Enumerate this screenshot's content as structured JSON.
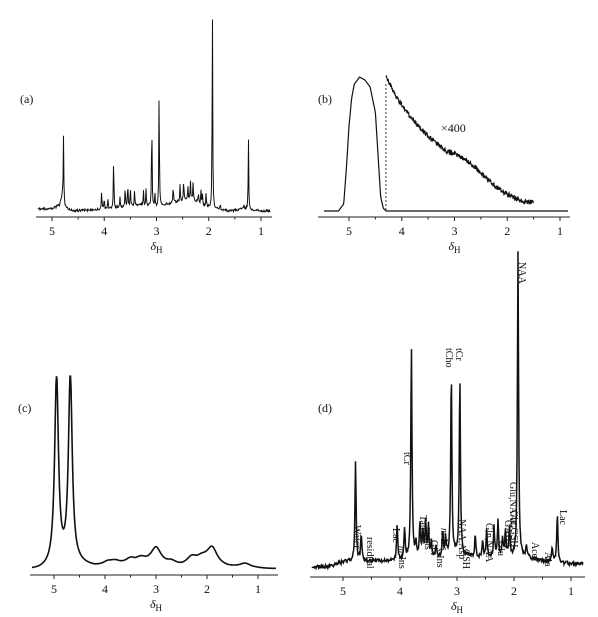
{
  "chart_data": [
    {
      "panel_label": "(a)",
      "type": "line",
      "xlabel": "δH",
      "xticks": [
        "5",
        "4",
        "3",
        "2",
        "1"
      ],
      "xlim": [
        5.4,
        0.6
      ],
      "grid": false,
      "baseline_points": [
        [
          5.0,
          0.02
        ],
        [
          4.85,
          0.04
        ],
        [
          4.8,
          0.09
        ],
        [
          4.75,
          0.03
        ],
        [
          4.6,
          0.01
        ],
        [
          4.3,
          0.015
        ],
        [
          3.9,
          0.02
        ],
        [
          3.6,
          0.03
        ],
        [
          3.3,
          0.04
        ],
        [
          3.0,
          0.03
        ],
        [
          2.7,
          0.05
        ],
        [
          2.5,
          0.06
        ],
        [
          2.35,
          0.07
        ],
        [
          2.2,
          0.05
        ],
        [
          2.05,
          0.03
        ],
        [
          1.9,
          0.02
        ],
        [
          1.6,
          0.01
        ],
        [
          1.3,
          0.02
        ],
        [
          1.0,
          0.01
        ],
        [
          0.7,
          0.01
        ]
      ],
      "peaks": [
        {
          "x": 4.78,
          "y": 0.31
        },
        {
          "x": 4.05,
          "y": 0.09
        },
        {
          "x": 4.0,
          "y": 0.05
        },
        {
          "x": 3.93,
          "y": 0.05
        },
        {
          "x": 3.82,
          "y": 0.26
        },
        {
          "x": 3.7,
          "y": 0.05
        },
        {
          "x": 3.6,
          "y": 0.1
        },
        {
          "x": 3.55,
          "y": 0.12
        },
        {
          "x": 3.5,
          "y": 0.09
        },
        {
          "x": 3.42,
          "y": 0.07
        },
        {
          "x": 3.25,
          "y": 0.07
        },
        {
          "x": 3.2,
          "y": 0.08
        },
        {
          "x": 3.09,
          "y": 0.46
        },
        {
          "x": 3.03,
          "y": 0.06
        },
        {
          "x": 2.95,
          "y": 0.58
        },
        {
          "x": 2.68,
          "y": 0.09
        },
        {
          "x": 2.55,
          "y": 0.08
        },
        {
          "x": 2.48,
          "y": 0.1
        },
        {
          "x": 2.4,
          "y": 0.07
        },
        {
          "x": 2.35,
          "y": 0.08
        },
        {
          "x": 2.3,
          "y": 0.09
        },
        {
          "x": 2.2,
          "y": 0.05
        },
        {
          "x": 2.15,
          "y": 0.07
        },
        {
          "x": 2.12,
          "y": 0.05
        },
        {
          "x": 2.05,
          "y": 0.07
        },
        {
          "x": 1.93,
          "y": 1.0
        },
        {
          "x": 1.78,
          "y": 0.03
        },
        {
          "x": 1.33,
          "y": 0.03
        },
        {
          "x": 1.24,
          "y": 0.34
        }
      ]
    },
    {
      "panel_label": "(b)",
      "type": "line",
      "xlabel": "δH",
      "xticks": [
        "5",
        "4",
        "3",
        "2",
        "1"
      ],
      "xlim": [
        5.4,
        0.6
      ],
      "grid": false,
      "annotation": "×400",
      "marker_line_x": 4.3,
      "series": [
        {
          "points": [
            [
              5.4,
              0.0
            ],
            [
              5.2,
              0.0
            ],
            [
              5.1,
              0.05
            ],
            [
              5.05,
              0.3
            ],
            [
              5.0,
              0.6
            ],
            [
              4.95,
              0.8
            ],
            [
              4.9,
              0.9
            ],
            [
              4.8,
              0.95
            ],
            [
              4.7,
              0.93
            ],
            [
              4.6,
              0.88
            ],
            [
              4.5,
              0.7
            ],
            [
              4.45,
              0.4
            ],
            [
              4.4,
              0.1
            ],
            [
              4.35,
              0.02
            ],
            [
              4.3,
              0.0
            ],
            [
              0.6,
              0.0
            ]
          ]
        },
        {
          "points": [
            [
              4.3,
              0.95
            ],
            [
              4.1,
              0.81
            ],
            [
              3.9,
              0.7
            ],
            [
              3.7,
              0.61
            ],
            [
              3.5,
              0.53
            ],
            [
              3.3,
              0.47
            ],
            [
              3.15,
              0.42
            ],
            [
              3.0,
              0.41
            ],
            [
              2.9,
              0.39
            ],
            [
              2.7,
              0.34
            ],
            [
              2.5,
              0.27
            ],
            [
              2.3,
              0.2
            ],
            [
              2.1,
              0.14
            ],
            [
              1.9,
              0.1
            ],
            [
              1.7,
              0.07
            ],
            [
              1.5,
              0.06
            ]
          ]
        }
      ]
    },
    {
      "panel_label": "(c)",
      "type": "line",
      "xlabel": "δH",
      "xticks": [
        "5",
        "4",
        "3",
        "2",
        "1"
      ],
      "xlim": [
        5.4,
        0.6
      ],
      "grid": false,
      "peaks": [
        {
          "x": 4.95,
          "y": 1.0
        },
        {
          "x": 4.68,
          "y": 1.0
        },
        {
          "x": 3.95,
          "y": 0.02
        },
        {
          "x": 3.8,
          "y": 0.02
        },
        {
          "x": 3.5,
          "y": 0.03
        },
        {
          "x": 3.3,
          "y": 0.03
        },
        {
          "x": 3.0,
          "y": 0.08
        },
        {
          "x": 2.7,
          "y": 0.02
        },
        {
          "x": 2.3,
          "y": 0.04
        },
        {
          "x": 2.1,
          "y": 0.03
        },
        {
          "x": 1.9,
          "y": 0.09
        },
        {
          "x": 1.25,
          "y": 0.02
        }
      ],
      "baseline_points": [
        [
          5.3,
          0.0
        ],
        [
          4.5,
          0.04
        ],
        [
          4.2,
          0.02
        ],
        [
          4.0,
          0.02
        ],
        [
          3.6,
          0.03
        ],
        [
          3.4,
          0.03
        ],
        [
          3.0,
          0.05
        ],
        [
          2.8,
          0.03
        ],
        [
          2.5,
          0.02
        ],
        [
          2.3,
          0.03
        ],
        [
          2.0,
          0.04
        ],
        [
          1.6,
          0.02
        ],
        [
          1.3,
          0.02
        ],
        [
          0.8,
          0.01
        ]
      ]
    },
    {
      "panel_label": "(d)",
      "type": "line",
      "xlabel": "δH",
      "xticks": [
        "5",
        "4",
        "3",
        "2",
        "1"
      ],
      "xlim": [
        5.4,
        0.6
      ],
      "grid": false,
      "peaks": [
        {
          "x": 4.78,
          "y": 0.32
        },
        {
          "x": 4.68,
          "y": 0.09
        },
        {
          "x": 4.05,
          "y": 0.12
        },
        {
          "x": 3.92,
          "y": 0.1
        },
        {
          "x": 3.8,
          "y": 0.7
        },
        {
          "x": 3.72,
          "y": 0.05
        },
        {
          "x": 3.65,
          "y": 0.11
        },
        {
          "x": 3.6,
          "y": 0.09
        },
        {
          "x": 3.55,
          "y": 0.12
        },
        {
          "x": 3.5,
          "y": 0.1
        },
        {
          "x": 3.45,
          "y": 0.05
        },
        {
          "x": 3.37,
          "y": 0.04
        },
        {
          "x": 3.25,
          "y": 0.08
        },
        {
          "x": 3.2,
          "y": 0.06
        },
        {
          "x": 3.1,
          "y": 0.6
        },
        {
          "x": 2.95,
          "y": 0.58
        },
        {
          "x": 2.68,
          "y": 0.07
        },
        {
          "x": 2.55,
          "y": 0.06
        },
        {
          "x": 2.48,
          "y": 0.09
        },
        {
          "x": 2.35,
          "y": 0.1
        },
        {
          "x": 2.28,
          "y": 0.12
        },
        {
          "x": 2.2,
          "y": 0.06
        },
        {
          "x": 2.15,
          "y": 0.09
        },
        {
          "x": 2.08,
          "y": 0.1
        },
        {
          "x": 1.93,
          "y": 1.0
        },
        {
          "x": 1.78,
          "y": 0.04
        },
        {
          "x": 1.33,
          "y": 0.05
        },
        {
          "x": 1.24,
          "y": 0.16
        }
      ],
      "baseline_points": [
        [
          5.3,
          0.0
        ],
        [
          4.9,
          0.02
        ],
        [
          4.6,
          0.02
        ],
        [
          4.3,
          0.02
        ],
        [
          4.0,
          0.02
        ],
        [
          3.7,
          0.03
        ],
        [
          3.3,
          0.03
        ],
        [
          3.0,
          0.04
        ],
        [
          2.6,
          0.03
        ],
        [
          2.2,
          0.03
        ],
        [
          1.8,
          0.03
        ],
        [
          1.5,
          0.02
        ],
        [
          1.0,
          0.01
        ],
        [
          0.8,
          0.01
        ]
      ],
      "annotations": [
        "Water",
        "residual",
        "Lac",
        "m-Ins",
        "tCr",
        "Tau",
        "m-Ins",
        "Glx",
        "s-Ins",
        "tCho",
        "tCr",
        "m-Ins",
        "NAA,Asp",
        "GSH",
        "Gln,NAA",
        "Glu",
        "GABA",
        "Gln,GSH",
        "Glu,NAAG",
        "NAA",
        "Ace",
        "Ala",
        "Lac"
      ]
    }
  ]
}
